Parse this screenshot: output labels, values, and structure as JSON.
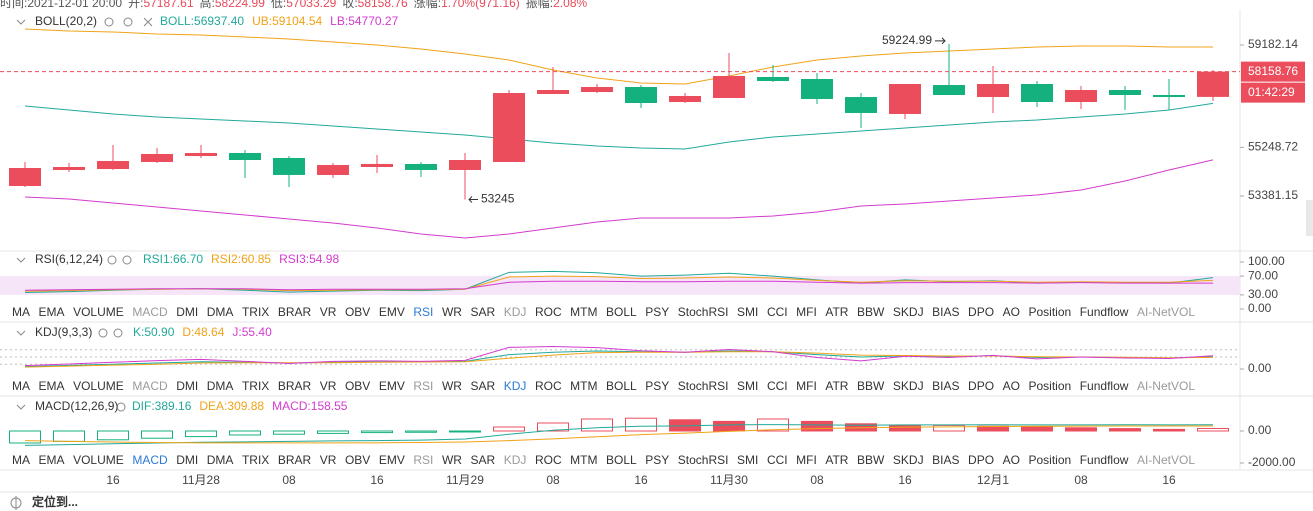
{
  "info": {
    "labels": [
      "时间:",
      "开:",
      "高:",
      "低:",
      "收:",
      "涨幅:",
      "振幅:"
    ],
    "time": "2021-12-01 20:00",
    "change": "1.70%(971.16)",
    "amplitude": "2.08%"
  },
  "chart_data": [
    {
      "type": "candlestick",
      "title": "BOLL(20,2)",
      "categories": [
        null,
        null,
        "16",
        null,
        "11月28",
        null,
        "08",
        null,
        "16",
        null,
        "11月29",
        null,
        "08",
        null,
        "16",
        null,
        "11月30",
        null,
        "08",
        null,
        "16",
        null,
        "12月1",
        null,
        "08",
        null,
        "16",
        null
      ],
      "open": [
        53765,
        54380,
        54418,
        54687,
        54918,
        55033,
        54841,
        54188,
        54495,
        54611,
        54380,
        54687,
        57300,
        57376,
        57569,
        56992,
        57146,
        57953,
        57876,
        57184,
        56532,
        57645,
        57184,
        57684,
        56992,
        57453,
        57261,
        57187.61
      ],
      "high": [
        54687,
        54649,
        55340,
        55225,
        55340,
        55148,
        54918,
        54649,
        54956,
        54687,
        55033,
        57453,
        58337,
        57684,
        57645,
        57338,
        58875,
        58414,
        58106,
        57338,
        57684,
        59224.99,
        58376,
        57799,
        57607,
        57607,
        57876,
        58224.99
      ],
      "low": [
        53727,
        54303,
        54380,
        54649,
        54841,
        54072,
        53727,
        54072,
        54265,
        54111,
        53245,
        54687,
        57300,
        57338,
        56762,
        56954,
        57146,
        57761,
        56916,
        55993,
        56339,
        57261,
        56570,
        56800,
        56723,
        56685,
        56685,
        57033.29
      ],
      "close": [
        54457,
        54495,
        54726,
        54995,
        55033,
        54764,
        54188,
        54572,
        54611,
        54380,
        54764,
        57338,
        57453,
        57569,
        56954,
        57223,
        57991,
        57799,
        57107,
        56570,
        57684,
        57261,
        57684,
        56992,
        57453,
        57261,
        57184,
        58158.76
      ],
      "up_color": "#eb4d5c",
      "down_color": "#14b17f",
      "series": [
        {
          "name": "BOLL",
          "label": "BOLL:",
          "legend_value": "56937.40",
          "color": "#21a99a",
          "values": [
            56839,
            56685,
            56531,
            56416,
            56339,
            56263,
            56186,
            56070,
            55955,
            55840,
            55725,
            55571,
            55417,
            55302,
            55225,
            55187,
            55456,
            55648,
            55763,
            55878,
            55994,
            56109,
            56224,
            56301,
            56416,
            56531,
            56685,
            56937.4
          ]
        },
        {
          "name": "UB",
          "label": "UB:",
          "legend_value": "59104.54",
          "color": "#f0a318",
          "values": [
            59797,
            59720,
            59682,
            59605,
            59567,
            59490,
            59413,
            59298,
            59182,
            59029,
            58837,
            58606,
            58222,
            57915,
            57722,
            57684,
            57991,
            58337,
            58606,
            58760,
            58875,
            58952,
            59029,
            59106,
            59144,
            59144,
            59106,
            59104.54
          ]
        },
        {
          "name": "LB",
          "label": "LB:",
          "legend_value": "54770.27",
          "color": "#d33bcf",
          "values": [
            53343,
            53266,
            53112,
            52958,
            52805,
            52651,
            52497,
            52344,
            52152,
            51921,
            51767,
            51921,
            52152,
            52382,
            52536,
            52536,
            52536,
            52613,
            52766,
            52997,
            53074,
            53189,
            53304,
            53419,
            53612,
            53957,
            54380,
            54770.27
          ]
        }
      ],
      "ylim": [
        51306,
        60450
      ],
      "yticks": [
        53381.15,
        55248.72,
        59182.14
      ],
      "last_price_line": true,
      "countdown": "01:42:29"
    },
    {
      "type": "line",
      "title": "RSI(6,12,24)",
      "series": [
        {
          "name": "RSI1",
          "label": "RSI1:",
          "legend_value": "66.70",
          "color": "#21a99a",
          "values": [
            35,
            37,
            40,
            42,
            43,
            40,
            36,
            38,
            40,
            39,
            42,
            78,
            80,
            77,
            70,
            72,
            76,
            70,
            62,
            55,
            62,
            58,
            60,
            55,
            57,
            56,
            55,
            66.7
          ]
        },
        {
          "name": "RSI2",
          "label": "RSI2:",
          "legend_value": "60.85",
          "color": "#f0a318",
          "values": [
            38,
            39,
            41,
            42,
            43,
            42,
            39,
            40,
            41,
            41,
            42,
            68,
            70,
            69,
            65,
            66,
            68,
            66,
            61,
            57,
            60,
            59,
            59,
            57,
            58,
            57,
            57,
            60.85
          ]
        },
        {
          "name": "RSI3",
          "label": "RSI3:",
          "legend_value": "54.98",
          "color": "#d33bcf",
          "values": [
            40,
            41,
            42,
            43,
            43,
            43,
            41,
            42,
            42,
            42,
            43,
            57,
            59,
            59,
            58,
            58,
            59,
            59,
            57,
            55,
            56,
            56,
            56,
            55,
            56,
            55,
            55,
            54.98
          ]
        }
      ],
      "ylim": [
        0,
        100
      ],
      "band": [
        30,
        70
      ],
      "yticks": [
        {
          "value": 0,
          "label": "0.00"
        },
        {
          "value": 30,
          "label": "30.00"
        },
        {
          "value": 70,
          "label": "70.00"
        },
        {
          "value": 100,
          "label": "100.00"
        }
      ]
    },
    {
      "type": "line",
      "title": "KDJ(9,3,3)",
      "series": [
        {
          "name": "K",
          "label": "K:",
          "legend_value": "50.90",
          "color": "#21a99a",
          "values": [
            10,
            15,
            20,
            25,
            30,
            28,
            25,
            28,
            30,
            30,
            32,
            60,
            70,
            75,
            72,
            70,
            75,
            72,
            60,
            50,
            55,
            52,
            55,
            48,
            50,
            48,
            46,
            50.9
          ]
        },
        {
          "name": "D",
          "label": "D:",
          "legend_value": "48.64",
          "color": "#f0a318",
          "values": [
            8,
            12,
            16,
            20,
            25,
            26,
            26,
            26,
            28,
            29,
            30,
            45,
            58,
            68,
            70,
            70,
            72,
            72,
            66,
            58,
            56,
            54,
            54,
            51,
            50,
            49,
            47,
            48.64
          ]
        },
        {
          "name": "J",
          "label": "J:",
          "legend_value": "55.40",
          "color": "#d33bcf",
          "values": [
            14,
            21,
            28,
            35,
            40,
            32,
            23,
            32,
            34,
            32,
            36,
            90,
            94,
            89,
            76,
            70,
            81,
            72,
            48,
            34,
            53,
            48,
            57,
            42,
            50,
            46,
            44,
            55.4
          ]
        }
      ],
      "ylim": [
        -25,
        125
      ],
      "ref_lines": [
        20,
        50,
        80
      ],
      "yticks": [
        {
          "value": 0,
          "label": "0.00"
        }
      ]
    },
    {
      "type": "macd",
      "title": "MACD(12,26,9)",
      "series": [
        {
          "name": "DIF",
          "label": "DIF:",
          "legend_value": "389.16",
          "color": "#21a99a",
          "values": [
            -900,
            -850,
            -800,
            -750,
            -700,
            -680,
            -650,
            -620,
            -600,
            -570,
            -500,
            -200,
            50,
            200,
            300,
            320,
            380,
            400,
            380,
            360,
            380,
            380,
            390,
            380,
            385,
            390,
            385,
            389.16
          ]
        },
        {
          "name": "DEA",
          "label": "DEA:",
          "legend_value": "309.88",
          "color": "#f0a318",
          "values": [
            -600,
            -650,
            -690,
            -720,
            -740,
            -740,
            -740,
            -740,
            -740,
            -720,
            -690,
            -600,
            -490,
            -360,
            -230,
            -130,
            -20,
            80,
            150,
            200,
            240,
            260,
            280,
            300,
            305,
            310,
            310,
            309.88
          ]
        }
      ],
      "histogram": {
        "name": "MACD",
        "label": "MACD:",
        "legend_value": "158.55",
        "color": "#d33bcf",
        "up_color": "#eb4d5c",
        "down_color": "#14b17f",
        "values": [
          -750,
          -650,
          -550,
          -450,
          -350,
          -250,
          -200,
          -150,
          -100,
          -80,
          -30,
          250,
          500,
          750,
          800,
          700,
          600,
          750,
          600,
          450,
          350,
          350,
          300,
          250,
          200,
          150,
          100,
          158.55
        ]
      },
      "ylim": [
        -2437.5,
        1000
      ],
      "yticks": [
        {
          "value": -2000,
          "label": "-2000.00"
        },
        {
          "value": 0,
          "label": "0.00"
        }
      ]
    }
  ],
  "indicator_tabs": [
    "MA",
    "EMA",
    "VOLUME",
    "MACD",
    "DMI",
    "DMA",
    "TRIX",
    "BRAR",
    "VR",
    "OBV",
    "EMV",
    "RSI",
    "WR",
    "SAR",
    "KDJ",
    "ROC",
    "MTM",
    "BOLL",
    "PSY",
    "StochRSI",
    "SMI",
    "CCI",
    "MFI",
    "ATR",
    "BBW",
    "SKDJ",
    "BIAS",
    "DPO",
    "AO",
    "Position",
    "Fundflow",
    "AI-NetVOL"
  ],
  "tab_rows": [
    {
      "active": 11,
      "muted": [
        3,
        14,
        31
      ]
    },
    {
      "active": 14,
      "muted": [
        3,
        11,
        31
      ]
    },
    {
      "active": 3,
      "muted": [
        11,
        14,
        31
      ]
    }
  ],
  "footer": "定位到..."
}
